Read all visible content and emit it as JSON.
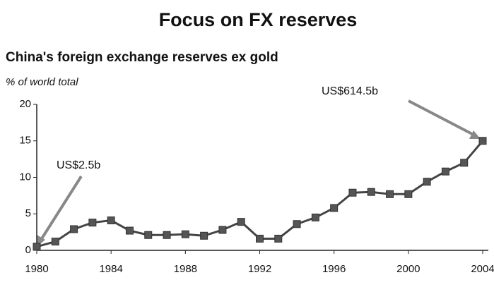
{
  "chart_data": {
    "type": "line",
    "title": "Focus on FX reserves",
    "subtitle": "China's foreign exchange reserves ex gold",
    "y_label": "% of world total",
    "annotations": [
      "US$2.5b",
      "US$614.5b"
    ],
    "x": [
      1980,
      1981,
      1982,
      1983,
      1984,
      1985,
      1986,
      1987,
      1988,
      1989,
      1990,
      1991,
      1992,
      1993,
      1994,
      1995,
      1996,
      1997,
      1998,
      1999,
      2000,
      2001,
      2002,
      2003,
      2004
    ],
    "series": [
      {
        "name": "China",
        "color": "#444444",
        "values": [
          0.5,
          1.2,
          2.9,
          3.8,
          4.1,
          2.7,
          2.1,
          2.1,
          2.2,
          2.0,
          2.8,
          3.9,
          1.6,
          1.6,
          3.6,
          4.5,
          5.8,
          7.9,
          8.0,
          7.7,
          7.7,
          9.4,
          10.8,
          12.0,
          15.0
        ]
      }
    ],
    "xlim": [
      1980,
      2004
    ],
    "xticks": [
      1980,
      1984,
      1988,
      1992,
      1996,
      2000,
      2004
    ],
    "ylim": [
      0,
      20
    ],
    "yticks": [
      0,
      5,
      10,
      15,
      20
    ],
    "grid": false
  }
}
